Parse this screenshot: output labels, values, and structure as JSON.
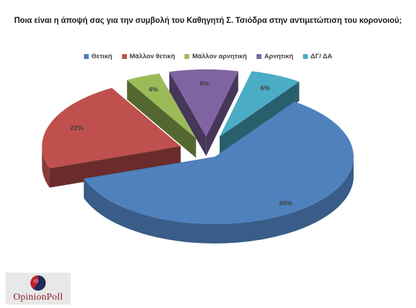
{
  "chart_data": {
    "type": "pie",
    "title": "Ποια είναι η άποψή σας για την συμβολή του Καθηγητή  Σ. Τσιόδρα στην αντιμετώπιση του κορονοιού;",
    "legend_position": "top",
    "categories": [
      "Θετική",
      "Μάλλον θετική",
      "Μάλλον αρνητική",
      "Αρνητική",
      "ΔΓ/ ΔΑ"
    ],
    "values": [
      60,
      22,
      4,
      8,
      6
    ],
    "data_labels": [
      "60%",
      "22%",
      "4%",
      "8%",
      "6%"
    ],
    "colors": [
      "#4f81bd",
      "#c0504d",
      "#9bbb59",
      "#8064a2",
      "#4bacc6"
    ]
  },
  "logo": {
    "text": "OpinionPoll"
  }
}
